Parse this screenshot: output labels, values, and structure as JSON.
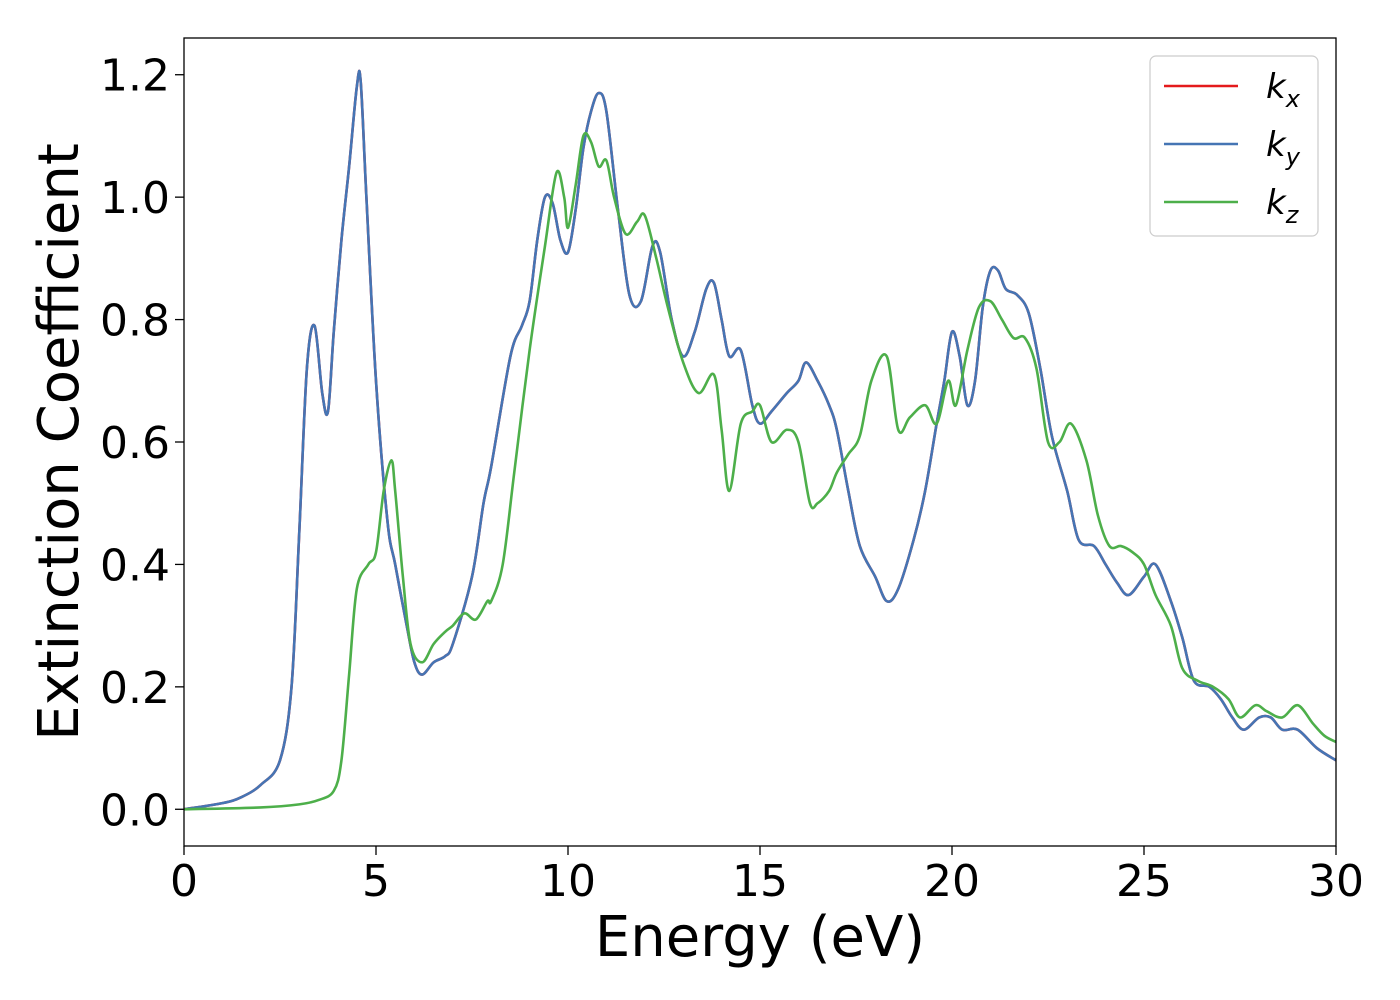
{
  "chart_data": {
    "type": "line",
    "xlabel": "Energy (eV)",
    "ylabel": "Extinction Coefficient",
    "xlim": [
      0,
      30
    ],
    "ylim": [
      -0.06,
      1.26
    ],
    "xticks": [
      0,
      5,
      10,
      15,
      20,
      25,
      30
    ],
    "xtick_labels": [
      "0",
      "5",
      "10",
      "15",
      "20",
      "25",
      "30"
    ],
    "yticks": [
      0.0,
      0.2,
      0.4,
      0.6,
      0.8,
      1.0,
      1.2
    ],
    "ytick_labels": [
      "0.0",
      "0.2",
      "0.4",
      "0.6",
      "0.8",
      "1.0",
      "1.2"
    ],
    "grid": false,
    "legend_position": "top-right",
    "series": [
      {
        "name": "k_x",
        "label_base": "k",
        "label_sub": "x",
        "color": "#e41a1c",
        "x": [
          0,
          1,
          1.5,
          2,
          2.5,
          2.8,
          3.0,
          3.2,
          3.4,
          3.6,
          3.75,
          3.9,
          4.1,
          4.3,
          4.5,
          4.6,
          4.75,
          5.0,
          5.3,
          5.5,
          5.8,
          6.0,
          6.2,
          6.5,
          6.8,
          7.0,
          7.5,
          7.8,
          8.0,
          8.5,
          8.8,
          9.0,
          9.2,
          9.4,
          9.6,
          9.8,
          10.0,
          10.2,
          10.4,
          10.6,
          10.8,
          11.0,
          11.3,
          11.6,
          11.9,
          12.2,
          12.4,
          12.7,
          13.0,
          13.3,
          13.6,
          13.8,
          14.0,
          14.2,
          14.5,
          14.8,
          15.0,
          15.3,
          15.7,
          16.0,
          16.2,
          16.5,
          16.8,
          17.0,
          17.3,
          17.6,
          18.0,
          18.3,
          18.6,
          19.0,
          19.3,
          19.6,
          19.8,
          20.0,
          20.2,
          20.4,
          20.6,
          20.8,
          21.0,
          21.2,
          21.4,
          21.7,
          22.0,
          22.3,
          22.6,
          23.0,
          23.3,
          23.7,
          24.0,
          24.3,
          24.6,
          25.0,
          25.3,
          25.7,
          26.0,
          26.3,
          26.7,
          27.0,
          27.3,
          27.6,
          28.0,
          28.3,
          28.6,
          29.0,
          29.5,
          30.0
        ],
        "values": [
          0.0,
          0.01,
          0.02,
          0.04,
          0.08,
          0.2,
          0.45,
          0.72,
          0.79,
          0.68,
          0.65,
          0.78,
          0.93,
          1.05,
          1.18,
          1.19,
          1.0,
          0.7,
          0.47,
          0.4,
          0.3,
          0.24,
          0.22,
          0.24,
          0.25,
          0.27,
          0.38,
          0.5,
          0.56,
          0.74,
          0.79,
          0.83,
          0.93,
          1.0,
          0.99,
          0.93,
          0.91,
          0.98,
          1.08,
          1.14,
          1.17,
          1.14,
          0.98,
          0.84,
          0.83,
          0.92,
          0.91,
          0.8,
          0.74,
          0.78,
          0.85,
          0.86,
          0.8,
          0.74,
          0.75,
          0.66,
          0.63,
          0.65,
          0.68,
          0.7,
          0.73,
          0.7,
          0.66,
          0.62,
          0.52,
          0.43,
          0.38,
          0.34,
          0.36,
          0.44,
          0.52,
          0.63,
          0.7,
          0.78,
          0.74,
          0.66,
          0.7,
          0.82,
          0.88,
          0.88,
          0.85,
          0.84,
          0.81,
          0.72,
          0.61,
          0.52,
          0.44,
          0.43,
          0.4,
          0.37,
          0.35,
          0.38,
          0.4,
          0.34,
          0.28,
          0.21,
          0.2,
          0.18,
          0.15,
          0.13,
          0.15,
          0.15,
          0.13,
          0.13,
          0.1,
          0.08
        ]
      },
      {
        "name": "k_y",
        "label_base": "k",
        "label_sub": "y",
        "color": "#4575b4",
        "x": [
          0,
          1,
          1.5,
          2,
          2.5,
          2.8,
          3.0,
          3.2,
          3.4,
          3.6,
          3.75,
          3.9,
          4.1,
          4.3,
          4.5,
          4.6,
          4.75,
          5.0,
          5.3,
          5.5,
          5.8,
          6.0,
          6.2,
          6.5,
          6.8,
          7.0,
          7.5,
          7.8,
          8.0,
          8.5,
          8.8,
          9.0,
          9.2,
          9.4,
          9.6,
          9.8,
          10.0,
          10.2,
          10.4,
          10.6,
          10.8,
          11.0,
          11.3,
          11.6,
          11.9,
          12.2,
          12.4,
          12.7,
          13.0,
          13.3,
          13.6,
          13.8,
          14.0,
          14.2,
          14.5,
          14.8,
          15.0,
          15.3,
          15.7,
          16.0,
          16.2,
          16.5,
          16.8,
          17.0,
          17.3,
          17.6,
          18.0,
          18.3,
          18.6,
          19.0,
          19.3,
          19.6,
          19.8,
          20.0,
          20.2,
          20.4,
          20.6,
          20.8,
          21.0,
          21.2,
          21.4,
          21.7,
          22.0,
          22.3,
          22.6,
          23.0,
          23.3,
          23.7,
          24.0,
          24.3,
          24.6,
          25.0,
          25.3,
          25.7,
          26.0,
          26.3,
          26.7,
          27.0,
          27.3,
          27.6,
          28.0,
          28.3,
          28.6,
          29.0,
          29.5,
          30.0
        ],
        "values": [
          0.0,
          0.01,
          0.02,
          0.04,
          0.08,
          0.2,
          0.45,
          0.72,
          0.79,
          0.68,
          0.65,
          0.78,
          0.93,
          1.05,
          1.18,
          1.19,
          1.0,
          0.7,
          0.47,
          0.4,
          0.3,
          0.24,
          0.22,
          0.24,
          0.25,
          0.27,
          0.38,
          0.5,
          0.56,
          0.74,
          0.79,
          0.83,
          0.93,
          1.0,
          0.99,
          0.93,
          0.91,
          0.98,
          1.08,
          1.14,
          1.17,
          1.14,
          0.98,
          0.84,
          0.83,
          0.92,
          0.91,
          0.8,
          0.74,
          0.78,
          0.85,
          0.86,
          0.8,
          0.74,
          0.75,
          0.66,
          0.63,
          0.65,
          0.68,
          0.7,
          0.73,
          0.7,
          0.66,
          0.62,
          0.52,
          0.43,
          0.38,
          0.34,
          0.36,
          0.44,
          0.52,
          0.63,
          0.7,
          0.78,
          0.74,
          0.66,
          0.7,
          0.82,
          0.88,
          0.88,
          0.85,
          0.84,
          0.81,
          0.72,
          0.61,
          0.52,
          0.44,
          0.43,
          0.4,
          0.37,
          0.35,
          0.38,
          0.4,
          0.34,
          0.28,
          0.21,
          0.2,
          0.18,
          0.15,
          0.13,
          0.15,
          0.15,
          0.13,
          0.13,
          0.1,
          0.08
        ]
      },
      {
        "name": "k_z",
        "label_base": "k",
        "label_sub": "z",
        "color": "#4daf4a",
        "x": [
          0,
          2,
          3,
          3.5,
          3.9,
          4.1,
          4.3,
          4.5,
          4.8,
          5.0,
          5.2,
          5.4,
          5.5,
          5.7,
          5.9,
          6.2,
          6.5,
          6.8,
          7.0,
          7.3,
          7.6,
          7.9,
          8.0,
          8.3,
          8.6,
          9.0,
          9.4,
          9.7,
          9.9,
          10.0,
          10.2,
          10.4,
          10.6,
          10.8,
          11.0,
          11.2,
          11.5,
          11.8,
          12.0,
          12.3,
          12.6,
          13.0,
          13.4,
          13.8,
          14.0,
          14.2,
          14.5,
          14.8,
          15.0,
          15.3,
          15.7,
          16.0,
          16.3,
          16.5,
          16.8,
          17.0,
          17.3,
          17.6,
          17.9,
          18.3,
          18.6,
          18.9,
          19.3,
          19.6,
          19.9,
          20.1,
          20.4,
          20.7,
          21.0,
          21.3,
          21.6,
          21.9,
          22.2,
          22.5,
          22.8,
          23.1,
          23.5,
          23.8,
          24.1,
          24.4,
          24.7,
          25.0,
          25.3,
          25.7,
          26.0,
          26.4,
          26.8,
          27.2,
          27.5,
          27.9,
          28.2,
          28.6,
          29.0,
          29.4,
          29.7,
          30.0
        ],
        "values": [
          0.0,
          0.003,
          0.008,
          0.015,
          0.03,
          0.08,
          0.22,
          0.36,
          0.4,
          0.42,
          0.52,
          0.57,
          0.52,
          0.38,
          0.27,
          0.24,
          0.27,
          0.29,
          0.3,
          0.32,
          0.31,
          0.34,
          0.34,
          0.4,
          0.55,
          0.75,
          0.92,
          1.04,
          1.0,
          0.95,
          1.02,
          1.1,
          1.09,
          1.05,
          1.06,
          1.0,
          0.94,
          0.96,
          0.97,
          0.9,
          0.82,
          0.73,
          0.68,
          0.71,
          0.62,
          0.52,
          0.63,
          0.65,
          0.66,
          0.6,
          0.62,
          0.6,
          0.5,
          0.5,
          0.52,
          0.55,
          0.58,
          0.61,
          0.7,
          0.74,
          0.62,
          0.64,
          0.66,
          0.63,
          0.7,
          0.66,
          0.75,
          0.82,
          0.83,
          0.8,
          0.77,
          0.77,
          0.72,
          0.6,
          0.6,
          0.63,
          0.57,
          0.48,
          0.43,
          0.43,
          0.42,
          0.4,
          0.35,
          0.3,
          0.23,
          0.21,
          0.2,
          0.18,
          0.15,
          0.17,
          0.16,
          0.15,
          0.17,
          0.14,
          0.12,
          0.11
        ]
      }
    ]
  }
}
